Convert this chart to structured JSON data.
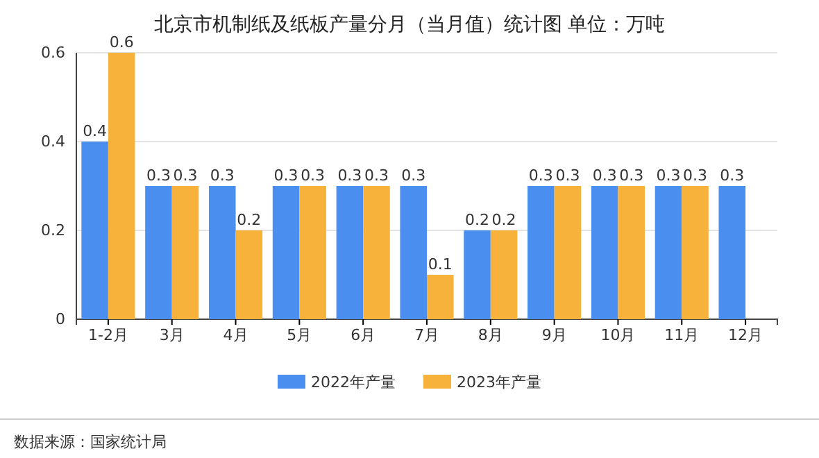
{
  "chart_data": {
    "type": "bar",
    "title": "北京市机制纸及纸板产量分月（当月值）统计图 单位：万吨",
    "categories": [
      "1-2月",
      "3月",
      "4月",
      "5月",
      "6月",
      "7月",
      "8月",
      "9月",
      "10月",
      "11月",
      "12月"
    ],
    "series": [
      {
        "name": "2022年产量",
        "color": "#4a8ff0",
        "values": [
          0.4,
          0.3,
          0.3,
          0.3,
          0.3,
          0.3,
          0.2,
          0.3,
          0.3,
          0.3,
          0.3
        ]
      },
      {
        "name": "2023年产量",
        "color": "#f7b23b",
        "values": [
          0.6,
          0.3,
          0.2,
          0.3,
          0.3,
          0.1,
          0.2,
          0.3,
          0.3,
          0.3,
          null
        ]
      }
    ],
    "ylim": [
      0,
      0.6
    ],
    "yticks": [
      0,
      0.2,
      0.4,
      0.6
    ],
    "grid": "y",
    "legend": "bottom",
    "data_labels": true,
    "annotations": [
      "数据来源：国家统计局"
    ]
  }
}
